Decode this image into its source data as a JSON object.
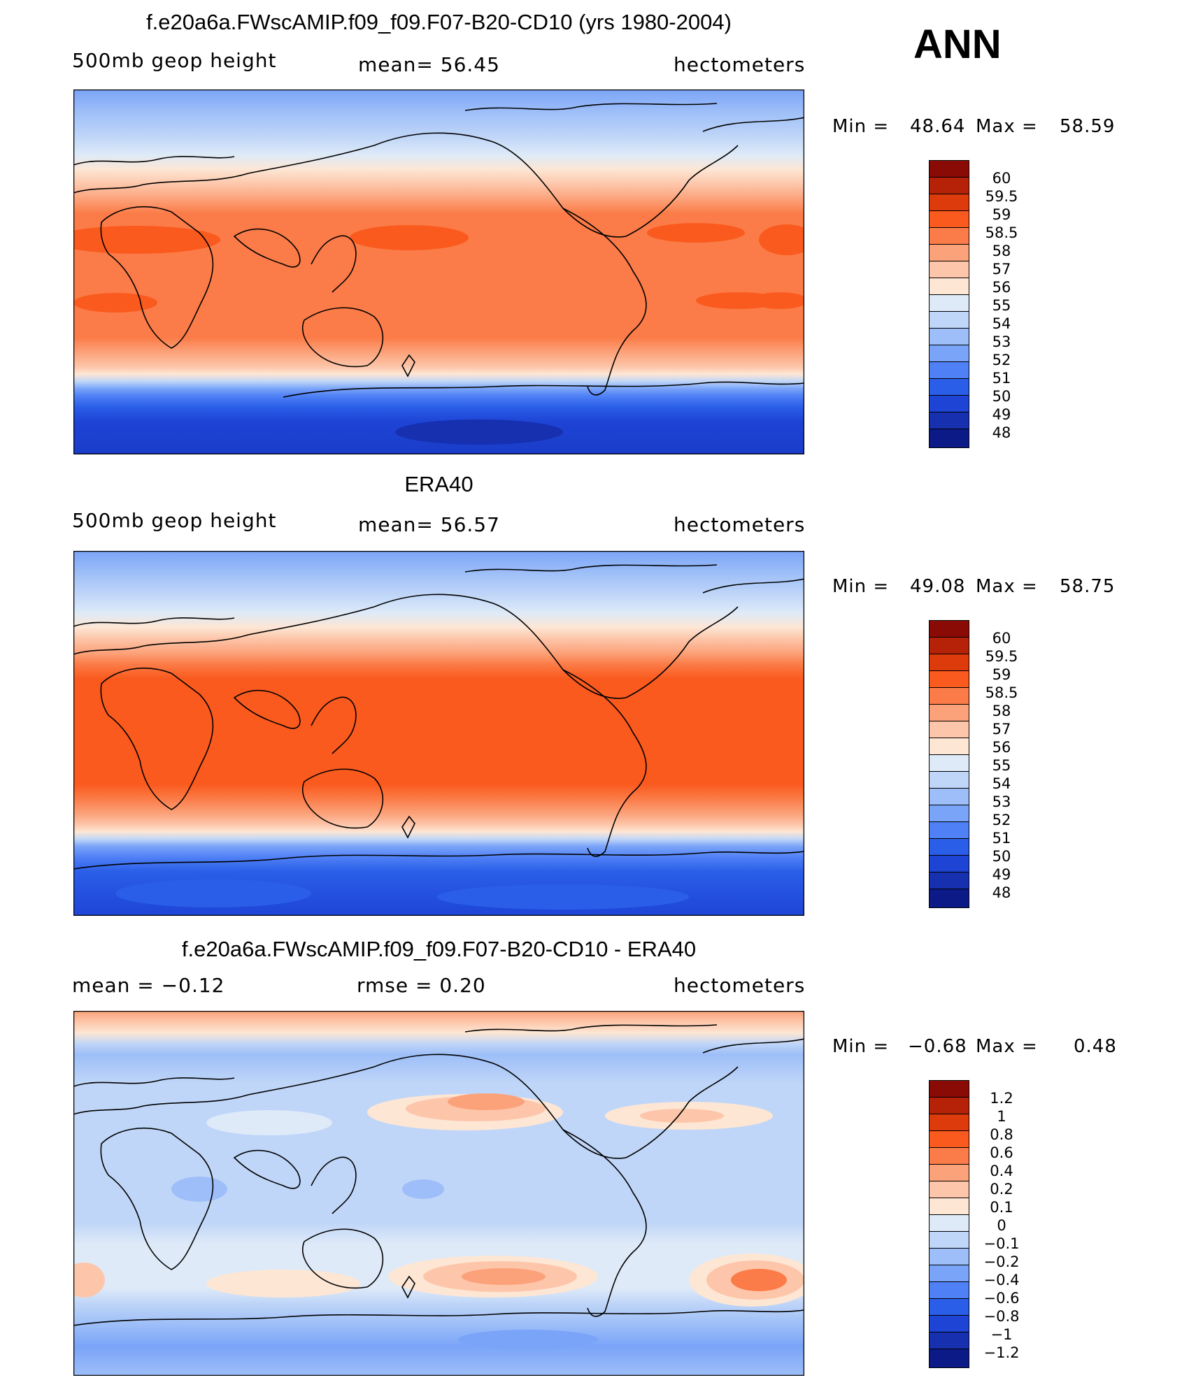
{
  "season": "ANN",
  "panels": [
    {
      "title": "f.e20a6a.FWscAMIP.f09_f09.F07-B20-CD10 (yrs 1980-2004)",
      "left_label": "500mb  geop  height",
      "center_label": "mean=   56.45",
      "right_label": "hectometers",
      "min_label": "Min  =",
      "min_value": "48.64",
      "max_label": "Max  =",
      "max_value": "58.59",
      "levels": [
        "60",
        "59.5",
        "59",
        "58.5",
        "58",
        "57",
        "56",
        "55",
        "54",
        "53",
        "52",
        "51",
        "50",
        "49",
        "48"
      ]
    },
    {
      "title": "ERA40",
      "left_label": "500mb  geop  height",
      "center_label": "mean=   56.57",
      "right_label": "hectometers",
      "min_label": "Min  =",
      "min_value": "49.08",
      "max_label": "Max  =",
      "max_value": "58.75",
      "levels": [
        "60",
        "59.5",
        "59",
        "58.5",
        "58",
        "57",
        "56",
        "55",
        "54",
        "53",
        "52",
        "51",
        "50",
        "49",
        "48"
      ]
    },
    {
      "title": "f.e20a6a.FWscAMIP.f09_f09.F07-B20-CD10 - ERA40",
      "left_label": "mean  =    −0.12",
      "center_label": "rmse  =     0.20",
      "right_label": "hectometers",
      "min_label": "Min  =",
      "min_value": "−0.68",
      "max_label": "Max  =",
      "max_value": "0.48",
      "levels": [
        "1.2",
        "1",
        "0.8",
        "0.6",
        "0.4",
        "0.2",
        "0.1",
        "0",
        "−0.1",
        "−0.2",
        "−0.4",
        "−0.6",
        "−0.8",
        "−1",
        "−1.2"
      ]
    }
  ],
  "colorbar_colors": [
    "#8a0a06",
    "#b52208",
    "#dd3b0c",
    "#fa5a1e",
    "#fb7c48",
    "#fca27a",
    "#fdc6aa",
    "#fde6d4",
    "#deeaf8",
    "#c0d6f8",
    "#9dbef8",
    "#7aa4f8",
    "#4f80f6",
    "#2a5ee8",
    "#1e44d6",
    "#1630b0",
    "#0c1a88"
  ]
}
